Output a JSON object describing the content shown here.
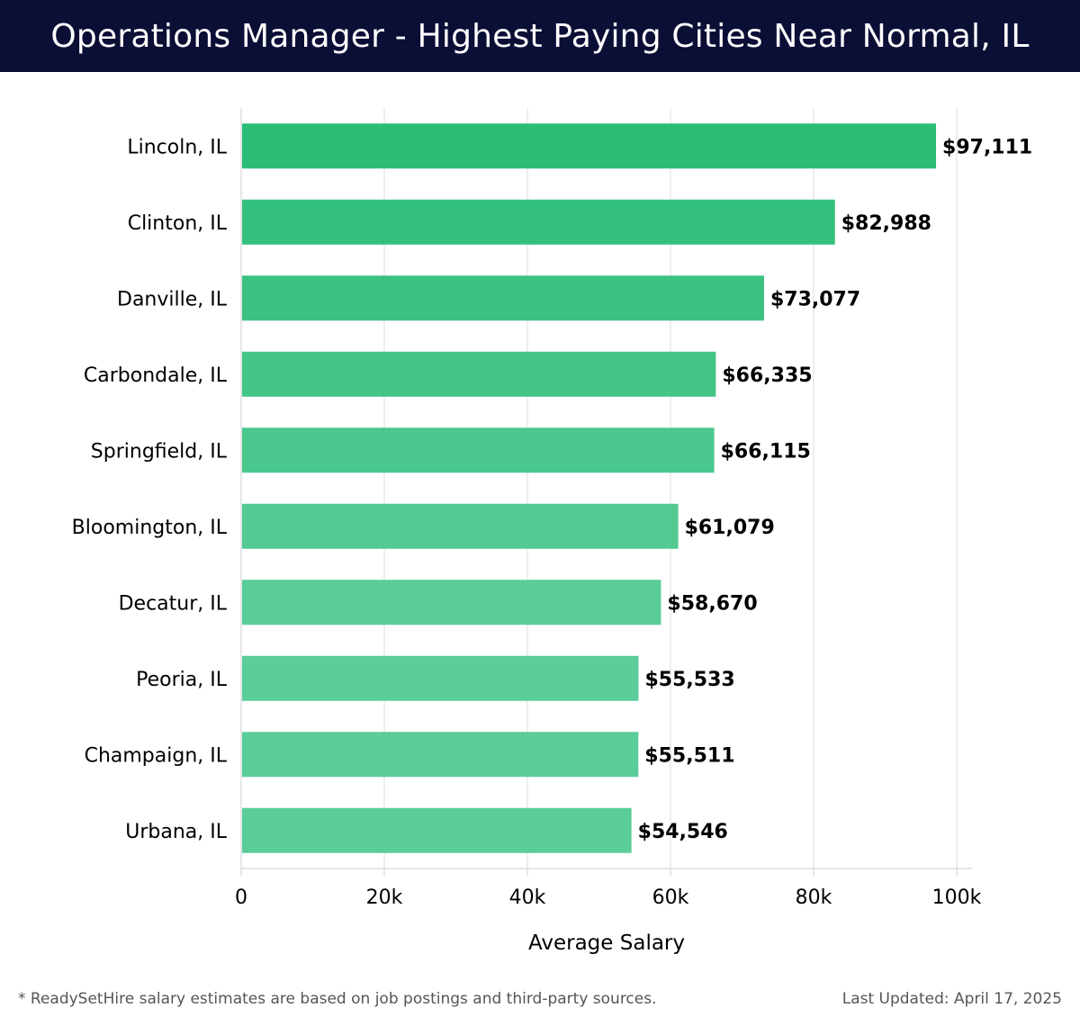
{
  "header": {
    "title": "Operations Manager - Highest Paying Cities Near Normal, IL"
  },
  "chart_data": {
    "type": "bar",
    "orientation": "horizontal",
    "title": "Operations Manager - Highest Paying Cities Near Normal, IL",
    "xlabel": "Average Salary",
    "ylabel": "",
    "categories": [
      "Lincoln, IL",
      "Clinton, IL",
      "Danville, IL",
      "Carbondale, IL",
      "Springfield, IL",
      "Bloomington, IL",
      "Decatur, IL",
      "Peoria, IL",
      "Champaign, IL",
      "Urbana, IL"
    ],
    "values": [
      97111,
      82988,
      73077,
      66335,
      66115,
      61079,
      58670,
      55533,
      55511,
      54546
    ],
    "value_labels": [
      "$97,111",
      "$82,988",
      "$73,077",
      "$66,335",
      "$66,115",
      "$61,079",
      "$58,670",
      "$55,533",
      "$55,511",
      "$54,546"
    ],
    "xlim": [
      0,
      100000
    ],
    "xticks": [
      0,
      20000,
      40000,
      60000,
      80000,
      100000
    ],
    "xtick_labels": [
      "0",
      "20k",
      "40k",
      "60k",
      "80k",
      "100k"
    ],
    "grid": true,
    "legend": "none",
    "colors": {
      "bar_dark": "#2bbd76",
      "bar_light": "#5acd98",
      "grid": "#dddddd",
      "axis": "#cccccc",
      "text": "#000000"
    }
  },
  "footer": {
    "note": "* ReadySetHire salary estimates are based on job postings and third-party sources.",
    "updated": "Last Updated: April 17, 2025"
  }
}
